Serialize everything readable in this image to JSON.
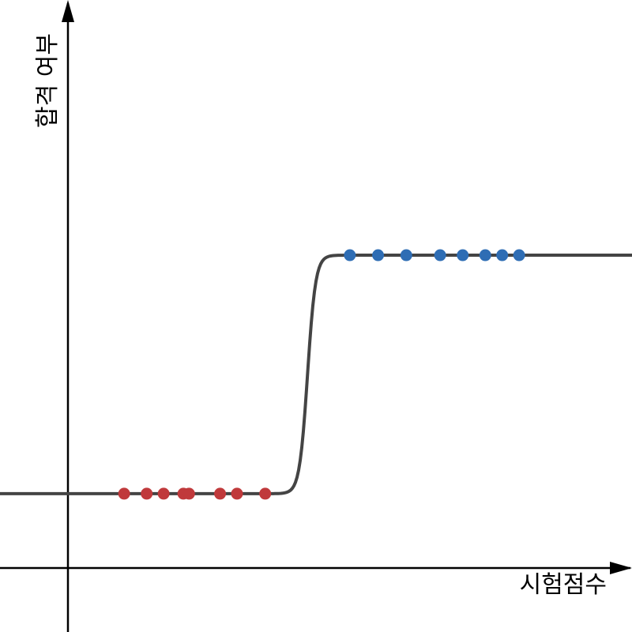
{
  "chart_data": {
    "type": "scatter",
    "title": "",
    "xlabel": "시험점수",
    "ylabel": "합격 여부",
    "xlim": [
      -1.2,
      10
    ],
    "ylim": [
      -0.58,
      2.07
    ],
    "grid": false,
    "legend": "none",
    "series": [
      {
        "color": "#c0393b",
        "x": [
          1,
          1.4,
          1.7,
          2.05,
          2.15,
          2.7,
          3.0,
          3.5
        ],
        "y": [
          0,
          0,
          0,
          0,
          0,
          0,
          0,
          0
        ]
      },
      {
        "color": "#2e6db4",
        "x": [
          5.0,
          5.5,
          6.0,
          6.6,
          7.0,
          7.4,
          7.7,
          8.0
        ],
        "y": [
          1,
          1,
          1,
          1,
          1,
          1,
          1,
          1
        ]
      }
    ],
    "curve": {
      "type": "logistic",
      "midpoint": 4.25,
      "steepness": 14,
      "color": "#444444"
    }
  }
}
